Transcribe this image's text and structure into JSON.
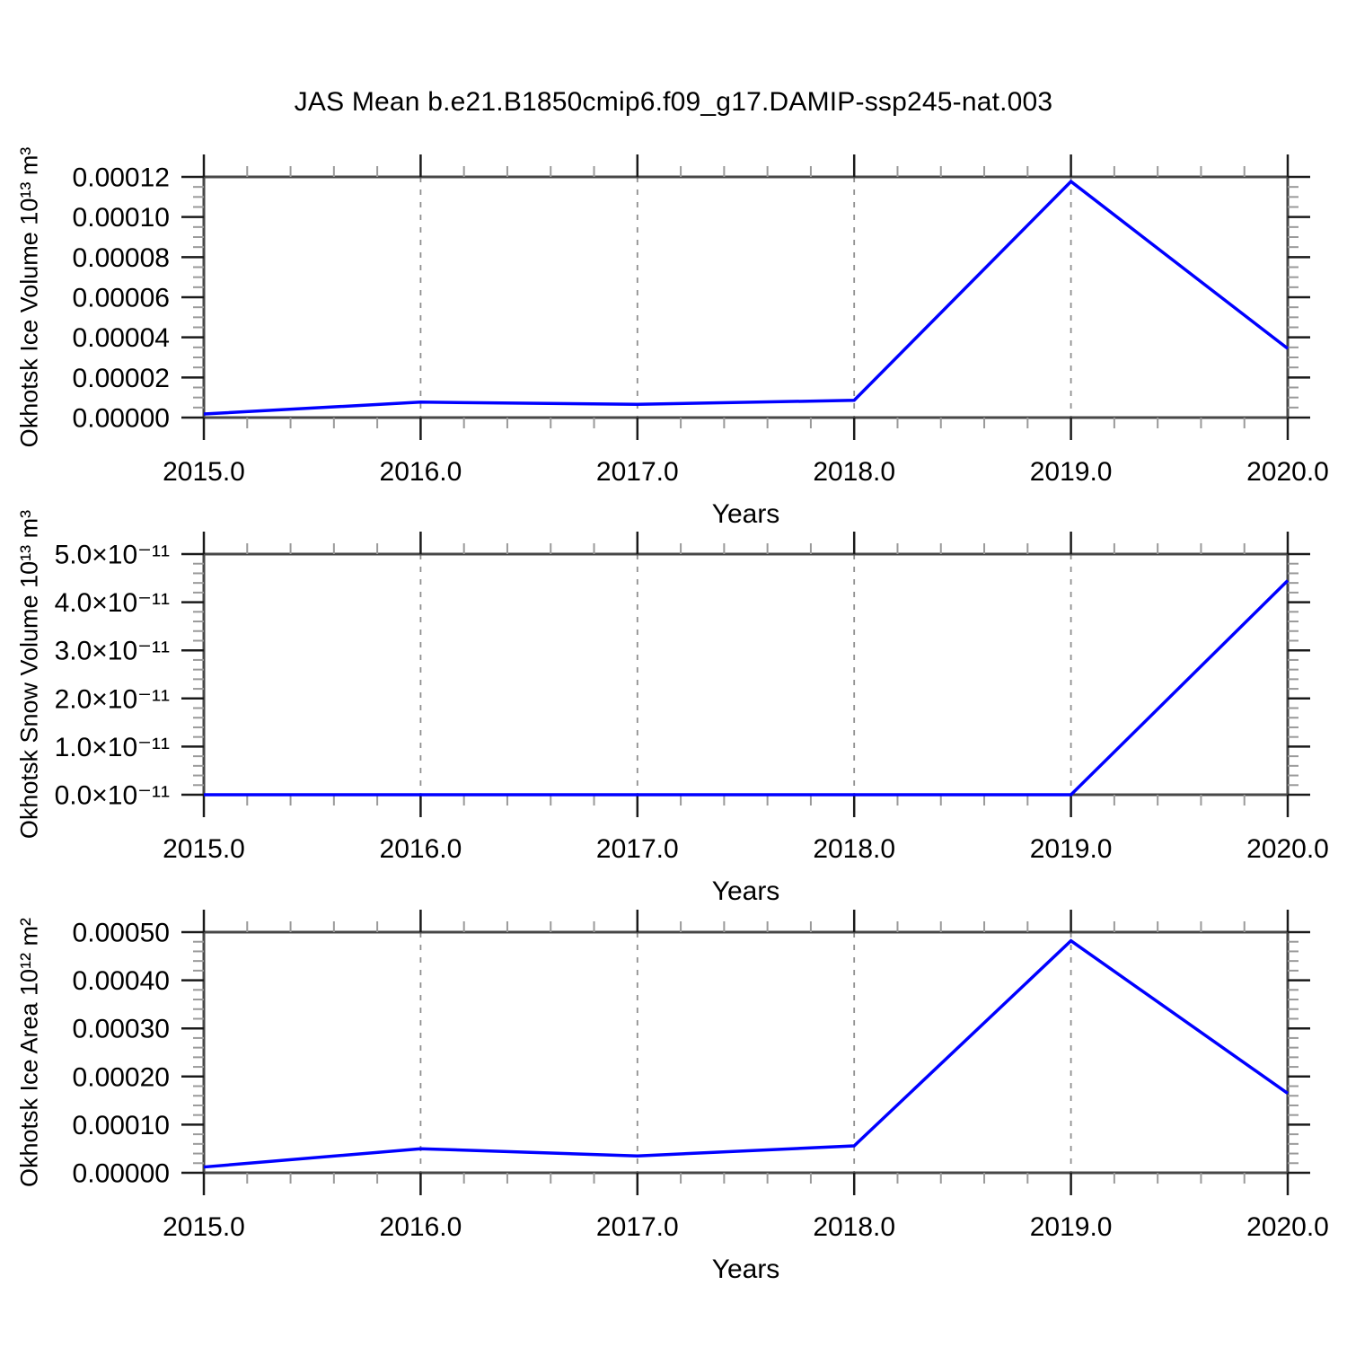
{
  "title": "JAS Mean b.e21.B1850cmip6.f09_g17.DAMIP-ssp245-nat.003",
  "colors": {
    "line": "#0000ff",
    "frame": "#474747",
    "major_tick": "#1a1a1a",
    "minor_tick": "#9a9a9a",
    "grid": "#8f8f8f",
    "text": "#000000"
  },
  "x_axis": {
    "label": "Years",
    "ticks": [
      2015,
      2016,
      2017,
      2018,
      2019,
      2020
    ],
    "tick_labels": [
      "2015.0",
      "2016.0",
      "2017.0",
      "2018.0",
      "2019.0",
      "2020.0"
    ],
    "minor_per_interval": 4,
    "range": [
      2015,
      2020
    ],
    "gridlines_at": [
      2016,
      2017,
      2018,
      2019
    ]
  },
  "chart_data": [
    {
      "type": "line",
      "name": "okhotsk-ice-volume",
      "title": "",
      "ylabel": "Okhotsk Ice Volume 10¹³ m³",
      "xlabel": "Years",
      "x": [
        2015,
        2016,
        2017,
        2018,
        2019,
        2020
      ],
      "y": [
        1.8e-06,
        7.7e-06,
        6.6e-06,
        8.6e-06,
        0.0001177,
        3.44e-05
      ],
      "ylim": [
        0,
        0.00012
      ],
      "yticks": [
        0,
        2e-05,
        4e-05,
        6e-05,
        8e-05,
        0.0001,
        0.00012
      ],
      "ytick_labels": [
        "0.00000",
        "0.00002",
        "0.00004",
        "0.00006",
        "0.00008",
        "0.00010",
        "0.00012"
      ],
      "y_minor_per_interval": 3,
      "grid": "vertical-dashed",
      "legend": "none"
    },
    {
      "type": "line",
      "name": "okhotsk-snow-volume",
      "title": "",
      "ylabel": "Okhotsk Snow Volume 10¹³ m³",
      "xlabel": "Years",
      "x": [
        2015,
        2016,
        2017,
        2018,
        2019,
        2020
      ],
      "y": [
        0,
        0,
        0,
        0,
        0,
        4.45e-11
      ],
      "ylim": [
        0,
        5e-11
      ],
      "yticks": [
        0,
        1e-11,
        2e-11,
        3e-11,
        4e-11,
        5e-11
      ],
      "ytick_labels": [
        "0.0×10⁻¹¹",
        "1.0×10⁻¹¹",
        "2.0×10⁻¹¹",
        "3.0×10⁻¹¹",
        "4.0×10⁻¹¹",
        "5.0×10⁻¹¹"
      ],
      "y_minor_per_interval": 4,
      "grid": "vertical-dashed",
      "legend": "none"
    },
    {
      "type": "line",
      "name": "okhotsk-ice-area",
      "title": "",
      "ylabel": "Okhotsk Ice Area 10¹² m²",
      "xlabel": "Years",
      "x": [
        2015,
        2016,
        2017,
        2018,
        2019,
        2020
      ],
      "y": [
        1.2e-05,
        5e-05,
        3.5e-05,
        5.6e-05,
        0.000482,
        0.000165
      ],
      "ylim": [
        0,
        0.0005
      ],
      "yticks": [
        0,
        0.0001,
        0.0002,
        0.0003,
        0.0004,
        0.0005
      ],
      "ytick_labels": [
        "0.00000",
        "0.00010",
        "0.00020",
        "0.00030",
        "0.00040",
        "0.00050"
      ],
      "y_minor_per_interval": 4,
      "grid": "vertical-dashed",
      "legend": "none"
    }
  ]
}
